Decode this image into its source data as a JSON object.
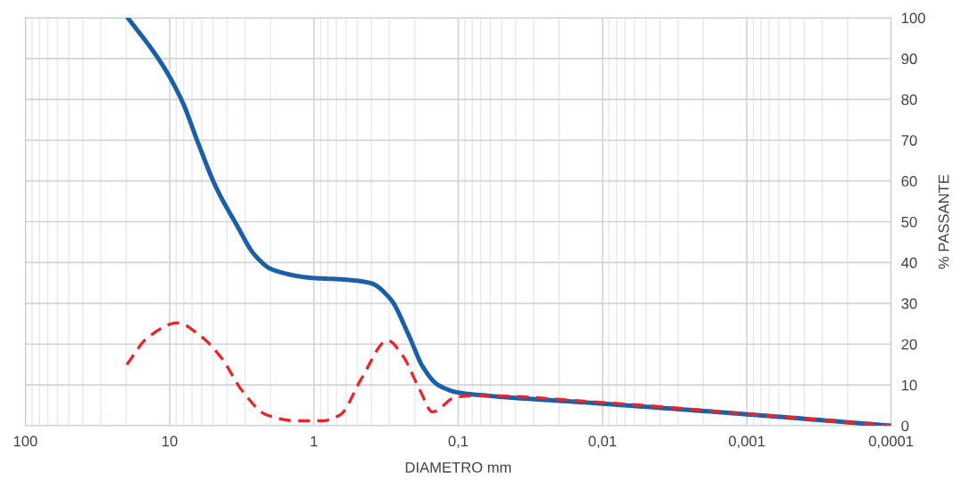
{
  "chart_data": {
    "type": "line",
    "xlabel": "DIAMETRO mm",
    "ylabel": "% PASSANTE",
    "log": "x",
    "xlim": [
      100,
      0.0001
    ],
    "ylim": [
      0,
      100
    ],
    "xticks": [
      100,
      10,
      1,
      {
        "value": 0.1,
        "label": "0,1"
      },
      {
        "value": 0.01,
        "label": "0,01"
      },
      {
        "value": 0.001,
        "label": "0,001"
      },
      {
        "value": 0.0001,
        "label": "0,0001"
      }
    ],
    "yticks": [
      0,
      10,
      20,
      30,
      40,
      50,
      60,
      70,
      80,
      90,
      100
    ],
    "grid": true,
    "marker": "none",
    "series": [
      {
        "color": "#1a5fa8",
        "line_style": "solid",
        "x": [
          19.5,
          12.3,
          10,
          8.04,
          6.38,
          4.79,
          3.43,
          2.58,
          1.95,
          1.0,
          0.66,
          0.408,
          0.294,
          0.221,
          0.175,
          0.138,
          0.099,
          0.0646,
          0.01,
          0.001,
          0.0001
        ],
        "values": [
          100,
          90.6,
          85.5,
          78.9,
          69.5,
          58.6,
          49.2,
          41.9,
          38.3,
          36.2,
          35.9,
          35.0,
          31.0,
          22.3,
          14.3,
          10.0,
          8.1,
          7.4,
          5.4,
          2.8,
          0
        ]
      },
      {
        "color": "#e8262a",
        "line_style": "dashed",
        "x": [
          19.8,
          14.2,
          8.84,
          6.05,
          4.35,
          3.13,
          2.14,
          1.33,
          0.87,
          0.656,
          0.471,
          0.308,
          0.243,
          0.183,
          0.151,
          0.104,
          0.071,
          0.01,
          0.001,
          0.0001
        ],
        "values": [
          15.0,
          21.6,
          25.2,
          21.9,
          16.5,
          8.5,
          2.7,
          1.2,
          1.2,
          2.7,
          11.4,
          20.9,
          17.2,
          8.5,
          3.4,
          7.0,
          7.4,
          5.7,
          2.9,
          0
        ]
      }
    ]
  }
}
